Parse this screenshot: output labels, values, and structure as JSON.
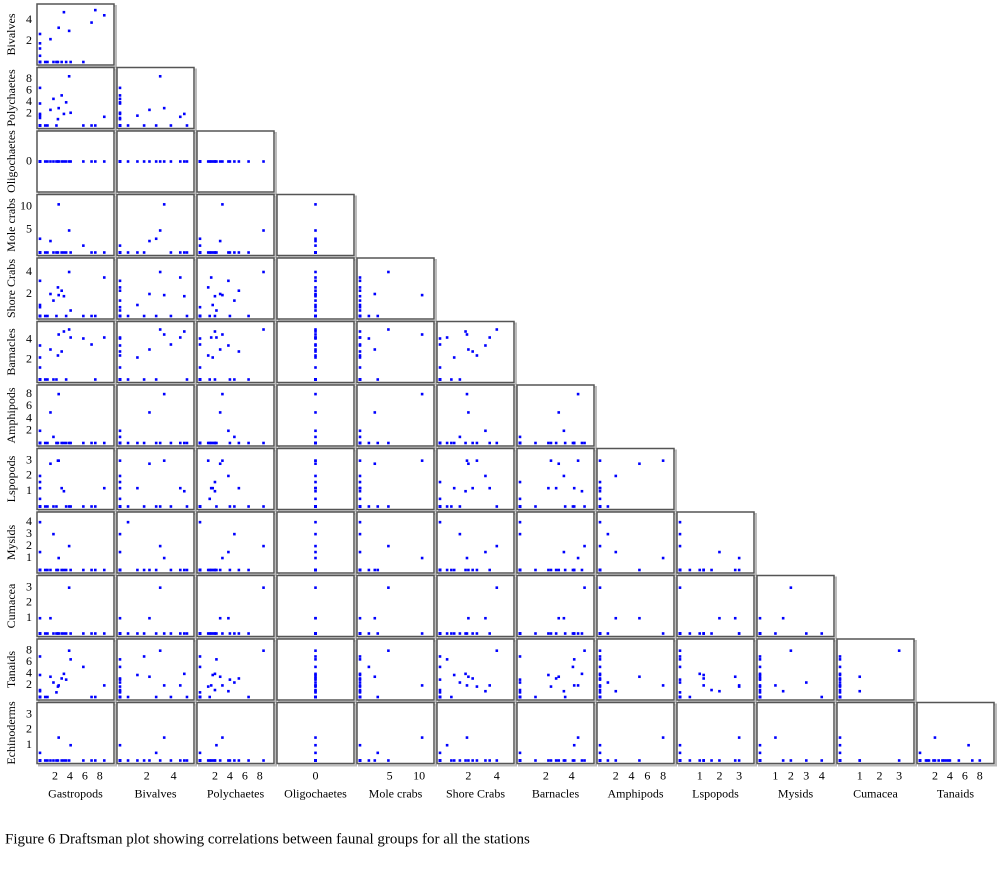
{
  "chart_data": {
    "type": "scatter-matrix",
    "caption": "Figure 6 Draftsman plot showing correlations between faunal groups for all the stations",
    "color": "#0000ff",
    "variables": [
      {
        "name": "Gastropods",
        "lim": [
          0,
          9.5
        ],
        "ticks": [
          2,
          4,
          6,
          8
        ]
      },
      {
        "name": "Bivalves",
        "lim": [
          0,
          5.3
        ],
        "ticks": [
          2,
          4
        ]
      },
      {
        "name": "Polychaetes",
        "lim": [
          0,
          9.5
        ],
        "ticks": [
          2,
          4,
          6,
          8
        ]
      },
      {
        "name": "Oligochaetes",
        "lim": [
          -1,
          1
        ],
        "ticks": [
          0
        ]
      },
      {
        "name": "Mole crabs",
        "lim": [
          0,
          12
        ],
        "ticks": [
          5,
          10
        ]
      },
      {
        "name": "Shore Crabs",
        "lim": [
          0,
          5
        ],
        "ticks": [
          2,
          4
        ]
      },
      {
        "name": "Barnacles",
        "lim": [
          0,
          5.5
        ],
        "ticks": [
          2,
          4
        ]
      },
      {
        "name": "Amphipods",
        "lim": [
          0,
          9
        ],
        "ticks": [
          2,
          4,
          6,
          8
        ]
      },
      {
        "name": "Lspopods",
        "lim": [
          0,
          3.6
        ],
        "ticks": [
          1,
          2,
          3
        ]
      },
      {
        "name": "Mysids",
        "lim": [
          0,
          4.6
        ],
        "ticks": [
          1,
          2,
          3,
          4
        ]
      },
      {
        "name": "Cumacea",
        "lim": [
          0,
          3.6
        ],
        "ticks": [
          1,
          2,
          3
        ]
      },
      {
        "name": "Tanaids",
        "lim": [
          0,
          9.5
        ],
        "ticks": [
          2,
          4,
          6,
          8
        ]
      },
      {
        "name": "Echinoderms",
        "lim": [
          0,
          3.6
        ],
        "ticks": [
          1,
          2,
          3
        ]
      }
    ],
    "stations": [
      [
        8.6,
        4.5,
        1.5,
        0,
        0,
        3.5,
        4.2,
        0,
        1.2,
        0,
        0,
        2,
        0
      ],
      [
        7.4,
        5,
        0,
        0,
        0,
        0,
        0,
        0,
        0,
        0,
        0,
        0,
        0
      ],
      [
        3.2,
        4.8,
        2,
        0,
        0,
        1.8,
        4.8,
        0,
        1,
        0,
        0,
        4,
        0
      ],
      [
        2.5,
        3.3,
        3,
        0,
        10.5,
        1.9,
        4.5,
        8,
        3,
        1,
        0,
        2,
        1.5
      ],
      [
        3.9,
        3,
        8.5,
        0,
        4.8,
        4,
        5,
        0,
        0,
        2,
        3,
        8,
        0
      ],
      [
        1.4,
        2.2,
        2.7,
        0,
        2.5,
        2,
        3,
        5,
        2.8,
        0,
        1,
        3.5,
        0
      ],
      [
        2.9,
        0,
        5.2,
        0,
        0,
        2.3,
        2.8,
        0,
        1.2,
        0,
        0,
        3.2,
        0
      ],
      [
        4.1,
        0,
        2.2,
        0,
        0,
        0.5,
        4.2,
        0,
        0,
        0,
        0,
        6.5,
        1
      ],
      [
        0,
        0,
        3.8,
        0,
        0,
        3.2,
        3.4,
        2,
        2,
        1.5,
        1,
        1,
        0
      ],
      [
        0,
        1.3,
        1.7,
        0,
        0,
        1,
        2.2,
        0,
        1.2,
        0,
        0,
        3.8,
        0
      ],
      [
        5.8,
        0,
        0,
        0,
        1.5,
        0,
        4.1,
        0,
        0,
        0,
        0,
        5.2,
        0
      ],
      [
        2.4,
        0,
        1.1,
        0,
        0,
        2.6,
        2.4,
        0,
        3,
        0,
        0,
        1.8,
        0
      ],
      [
        3.5,
        0,
        4,
        0,
        0,
        0,
        0,
        0,
        0,
        0,
        0,
        3,
        0
      ],
      [
        0,
        2.7,
        0,
        0,
        3,
        0,
        0,
        0,
        0,
        0,
        0,
        0,
        0.5
      ],
      [
        0,
        0,
        0,
        0,
        0,
        0,
        0,
        0,
        0,
        0,
        0,
        0,
        0
      ],
      [
        1.8,
        0,
        4.6,
        0,
        0,
        1.4,
        0,
        1,
        0,
        3,
        0,
        2.5,
        0
      ],
      [
        0,
        0,
        0,
        0,
        0,
        0,
        0,
        0,
        0,
        0,
        0,
        0,
        0
      ],
      [
        6.9,
        3.8,
        0,
        0,
        0,
        0,
        3.5,
        0,
        0,
        0,
        0,
        0,
        0
      ],
      [
        0,
        0,
        2,
        0,
        0,
        0,
        0,
        0,
        1.6,
        0,
        0,
        1.2,
        0
      ],
      [
        0,
        0.6,
        0,
        0,
        0,
        0,
        0,
        0,
        0,
        4,
        0,
        0,
        0
      ],
      [
        1,
        0,
        0,
        0,
        0,
        0,
        0,
        0,
        0,
        0,
        0,
        0,
        0
      ],
      [
        0,
        0,
        6.5,
        0,
        0,
        0,
        0,
        0,
        0,
        0,
        0,
        0,
        0
      ],
      [
        0,
        0,
        0,
        0,
        0,
        0,
        1.2,
        0,
        0,
        0,
        0,
        0,
        0
      ],
      [
        0,
        0,
        0,
        0,
        0,
        0.8,
        0,
        0,
        0,
        0,
        0,
        0,
        0
      ],
      [
        2.2,
        0,
        0,
        0,
        0,
        0,
        0,
        0,
        0,
        0,
        0,
        0.8,
        0
      ],
      [
        0,
        0,
        1.3,
        0,
        0,
        0,
        0,
        0,
        0.5,
        0,
        0,
        0,
        0
      ],
      [
        0,
        1.8,
        0,
        0,
        0,
        0,
        0,
        0,
        0,
        0,
        0,
        7,
        0
      ],
      [
        0,
        0,
        0,
        0,
        0,
        0,
        0,
        0,
        0,
        0,
        0,
        0,
        0
      ],
      [
        0.7,
        0,
        0,
        0,
        0,
        0,
        0,
        0,
        0,
        0,
        0,
        0,
        0
      ],
      [
        0,
        0,
        0,
        0,
        0,
        0,
        0,
        0,
        0,
        0,
        0,
        0,
        0
      ]
    ]
  }
}
